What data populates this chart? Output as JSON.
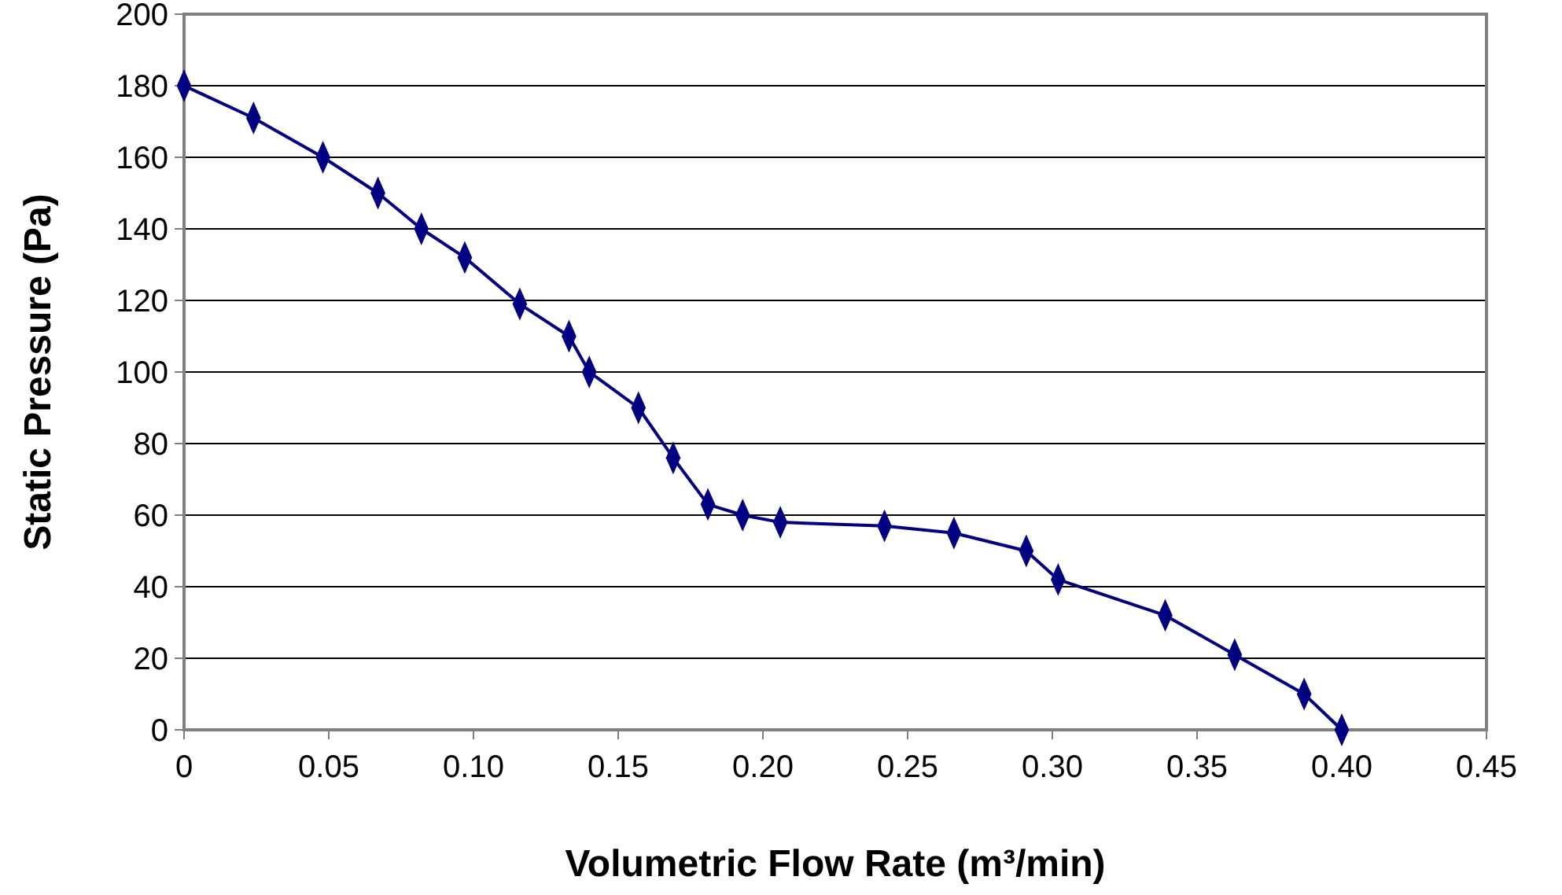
{
  "chart_data": {
    "type": "line",
    "xlabel": "Volumetric Flow Rate (m³/min)",
    "ylabel": "Static Pressure (Pa)",
    "x": [
      0,
      0.024,
      0.048,
      0.067,
      0.082,
      0.097,
      0.116,
      0.133,
      0.14,
      0.157,
      0.169,
      0.181,
      0.193,
      0.206,
      0.242,
      0.266,
      0.291,
      0.302,
      0.339,
      0.363,
      0.387,
      0.4
    ],
    "series": [
      {
        "color": "#000080",
        "values": [
          180,
          171,
          160,
          150,
          140,
          132,
          119,
          110,
          100,
          90,
          76,
          63,
          60,
          58,
          57,
          55,
          50,
          42,
          32,
          21,
          10,
          0
        ]
      }
    ],
    "xlim": [
      0,
      0.45
    ],
    "xticks": [
      0,
      {
        "value": 0.05,
        "label": "0.05"
      },
      {
        "value": 0.1,
        "label": "0.10"
      },
      0.15,
      {
        "value": 0.2,
        "label": "0.20"
      },
      0.25,
      {
        "value": 0.3,
        "label": "0.30"
      },
      0.35,
      {
        "value": 0.4,
        "label": "0.40"
      },
      0.45
    ],
    "ylim": [
      0,
      200
    ],
    "yticks": [
      0,
      20,
      40,
      60,
      80,
      100,
      120,
      140,
      160,
      180,
      200
    ],
    "grid": "y",
    "marker": "diamond",
    "line_style": "solid"
  }
}
